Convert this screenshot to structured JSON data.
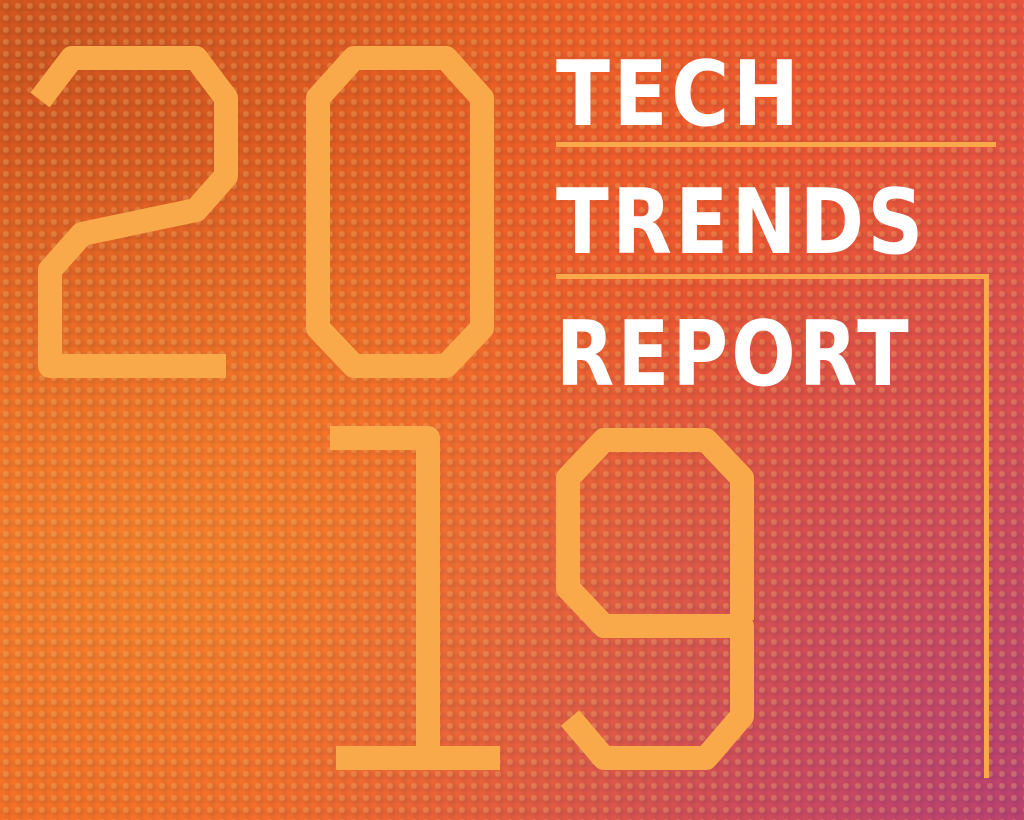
{
  "cover": {
    "year_digits": [
      "2",
      "0",
      "1",
      "9"
    ],
    "title_lines": [
      "TECH",
      "TRENDS",
      "REPORT"
    ]
  },
  "colors": {
    "background_orange": "#f36d2c",
    "background_magenta": "#c84b7a",
    "numeral_and_rule_yellow": "#f9a94a",
    "title_white": "#ffffff"
  }
}
